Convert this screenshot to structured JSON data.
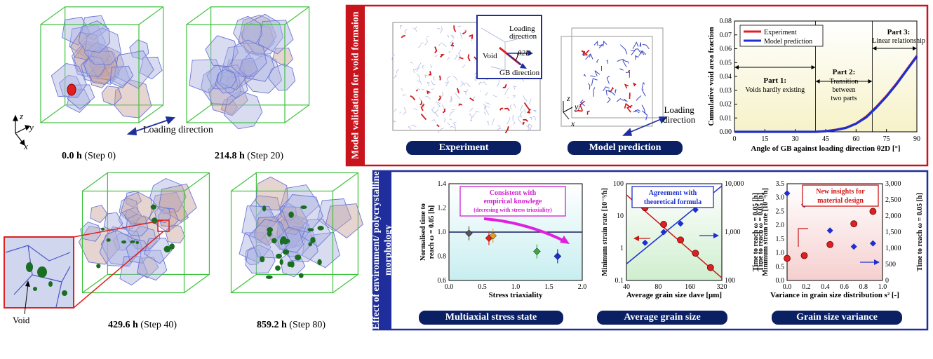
{
  "steps": [
    {
      "time": "0.0 h",
      "step": "(Step 0)"
    },
    {
      "time": "214.8 h",
      "step": "(Step 20)"
    },
    {
      "time": "429.6 h",
      "step": "(Step 40)"
    },
    {
      "time": "859.2 h",
      "step": "(Step 80)"
    }
  ],
  "axes_labels": {
    "x": "x",
    "y": "y",
    "z": "z"
  },
  "loading_direction": "Loading direction",
  "loading_direction_2": "Loading\ndirection",
  "void_label": "Void",
  "validation": {
    "side_title": "Model validation\nfor void formaion",
    "experiment_label": "Experiment",
    "model_label": "Model prediction",
    "inset": {
      "loading": "Loading\ndirection",
      "theta": "θ2D",
      "void": "Void",
      "gb": "GB direction"
    }
  },
  "environment": {
    "side_title": "Effect of environment/\npolycrystalline morphology",
    "panels": [
      "Multiaxial stress state",
      "Average grain size",
      "Grain size variance"
    ]
  },
  "colors": {
    "red_frame": "#c8141c",
    "blue_frame": "#1f2e9c",
    "navy": "#0b1f63",
    "grain": "#6b77d6",
    "green_box": "#3cc23c"
  },
  "chart_data": [
    {
      "type": "line",
      "title": "",
      "xlabel": "Angle of GB against loading direction θ2D [°]",
      "ylabel": "Cumulative void area fraction",
      "xlim": [
        0,
        90
      ],
      "ylim": [
        0,
        0.08
      ],
      "xticks": [
        0,
        15,
        30,
        45,
        60,
        75,
        90
      ],
      "yticks": [
        0,
        0.01,
        0.02,
        0.03,
        0.04,
        0.05,
        0.06,
        0.07,
        0.08
      ],
      "series": [
        {
          "name": "Experiment",
          "color": "#e02020",
          "x": [
            0,
            40,
            45,
            50,
            55,
            60,
            65,
            70,
            75,
            80,
            85,
            90
          ],
          "y": [
            0,
            0,
            0.0005,
            0.0015,
            0.003,
            0.006,
            0.011,
            0.018,
            0.026,
            0.035,
            0.045,
            0.055
          ]
        },
        {
          "name": "Model prediction",
          "color": "#1d2fd0",
          "x": [
            0,
            40,
            45,
            50,
            55,
            60,
            65,
            70,
            75,
            80,
            85,
            90
          ],
          "y": [
            0,
            0,
            0.0004,
            0.0013,
            0.0028,
            0.0058,
            0.0105,
            0.0175,
            0.0255,
            0.0345,
            0.0445,
            0.0545
          ]
        }
      ],
      "annotations": [
        {
          "title": "Part 1:",
          "text": "Voids hardly existing"
        },
        {
          "title": "Part 2:",
          "text": "Transition between two parts"
        },
        {
          "title": "Part 3:",
          "text": "Linear relationship"
        }
      ],
      "legend": "top-left"
    },
    {
      "type": "scatter",
      "xlabel": "Stress triaxiality",
      "ylabel": "Normalised time to reach ω = 0.05 [h]",
      "xlim": [
        0,
        2.0
      ],
      "ylim": [
        0.6,
        1.4
      ],
      "xticks": [
        0,
        0.5,
        1.0,
        1.5,
        2.0
      ],
      "yticks": [
        0.6,
        0.8,
        1.0,
        1.2,
        1.4
      ],
      "reference_line": 1.0,
      "series": [
        {
          "name": "",
          "color": "#555555",
          "x": [
            0.3
          ],
          "y": [
            0.99
          ]
        },
        {
          "name": "",
          "color": "#e02020",
          "x": [
            0.6
          ],
          "y": [
            0.95
          ]
        },
        {
          "name": "",
          "color": "#e0a020",
          "x": [
            0.66
          ],
          "y": [
            0.97
          ]
        },
        {
          "name": "",
          "color": "#3aa83a",
          "x": [
            1.32
          ],
          "y": [
            0.84
          ]
        },
        {
          "name": "",
          "color": "#1d2fd0",
          "x": [
            1.63
          ],
          "y": [
            0.8
          ]
        }
      ],
      "annotation": {
        "title": "Consistent with empirical knowlege",
        "text": "(decresing with stress triaxiality)"
      }
    },
    {
      "type": "scatter",
      "xlabel": "Average grain size dave [μm]",
      "ylabel": "Minimum strain rate [10⁻⁵/h]",
      "y2label": "Time to reach ω = 0.05 [h]",
      "xlim": [
        40,
        320
      ],
      "ylim": [
        0.1,
        100
      ],
      "y2lim": [
        100,
        10000
      ],
      "xticks": [
        40,
        80,
        160,
        320
      ],
      "yticks": [
        0.1,
        1,
        10,
        100
      ],
      "y2ticks": [
        100,
        1000,
        10000
      ],
      "scale": "log",
      "series": [
        {
          "name": "Minimum strain rate",
          "color": "#e02020",
          "x": [
            60,
            90,
            130,
            180,
            250
          ],
          "y": [
            18,
            5.5,
            1.8,
            0.7,
            0.25
          ]
        },
        {
          "name": "Time to reach ω = 0.05",
          "color": "#1d2fd0",
          "x": [
            60,
            90,
            130,
            180,
            250
          ],
          "y": [
            600,
            1000,
            1500,
            2900,
            5300
          ]
        }
      ],
      "annotation": {
        "title": "Agreement with theoretical formula"
      }
    },
    {
      "type": "scatter",
      "xlabel": "Variance in grain size distribution s² [-]",
      "ylabel": "Minimum strain rate [10⁻⁵/h]",
      "y2label": "Time to reach ω = 0.05 [h]",
      "xlim": [
        0,
        1.0
      ],
      "ylim": [
        0,
        3.5
      ],
      "y2lim": [
        0,
        3000
      ],
      "xticks": [
        0,
        0.2,
        0.4,
        0.6,
        0.8,
        1.0
      ],
      "yticks": [
        0,
        0.5,
        1.0,
        1.5,
        2.0,
        2.5,
        3.0,
        3.5
      ],
      "y2ticks": [
        0,
        500,
        1000,
        1500,
        2000,
        2500,
        3000
      ],
      "series": [
        {
          "name": "Minimum strain rate",
          "color": "#e02020",
          "x": [
            0.0,
            0.18,
            0.45,
            0.7,
            0.9
          ],
          "y": [
            0.8,
            0.9,
            1.3,
            2.05,
            2.5
          ]
        },
        {
          "name": "Time to reach ω = 0.05",
          "color": "#1d2fd0",
          "x": [
            0.0,
            0.18,
            0.45,
            0.7,
            0.9
          ],
          "y": [
            2700,
            2350,
            1550,
            1050,
            1150
          ]
        }
      ],
      "annotation": {
        "title": "New insights for material design"
      }
    }
  ]
}
